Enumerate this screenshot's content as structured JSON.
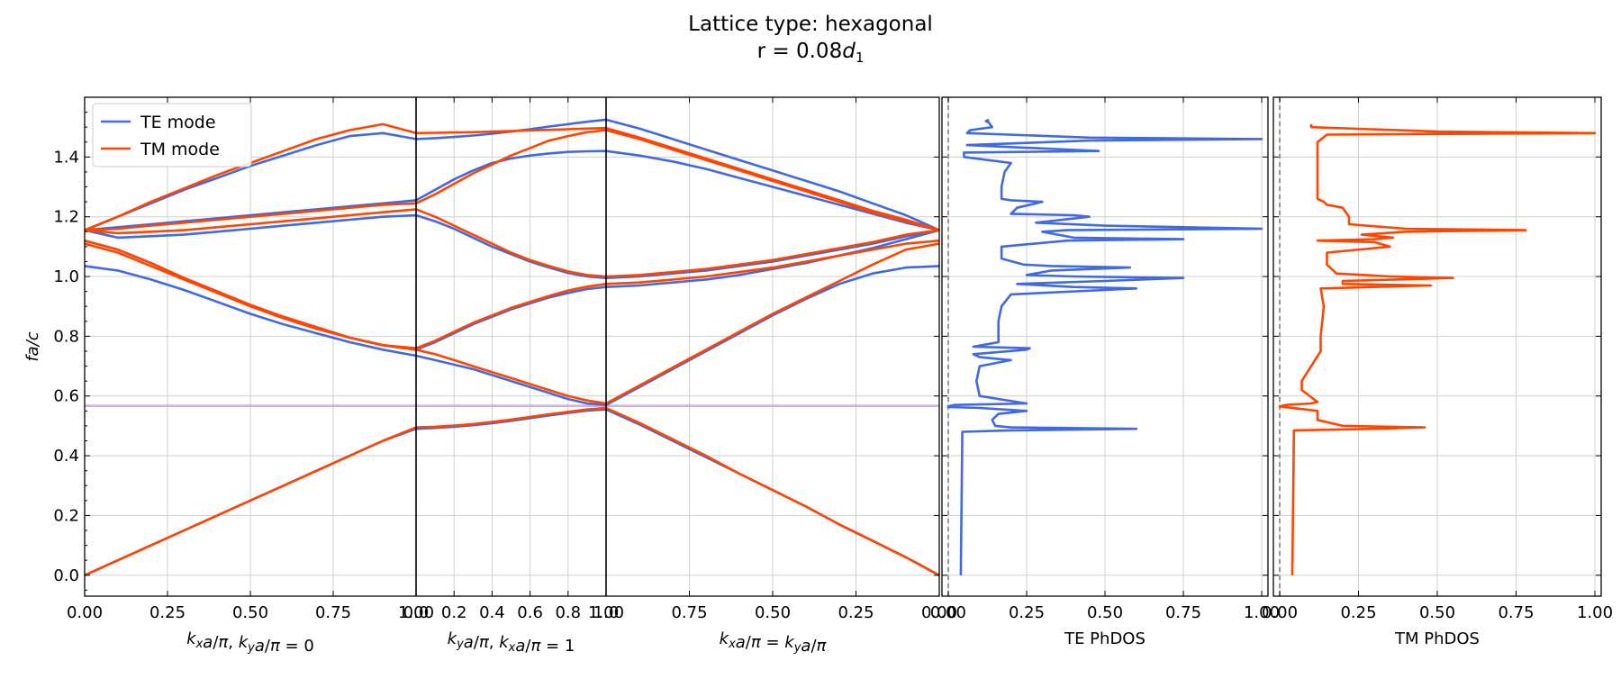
{
  "figure": {
    "title_line1": "Lattice type: hexagonal",
    "title_line2_prefix": "r = 0.08",
    "title_line2_var": "d",
    "title_line2_sub": "1"
  },
  "colors": {
    "te": "#4169e1",
    "tm": "#ff4500",
    "gap": "#c8a8e6",
    "grid": "#cfcfcf"
  },
  "chart_data": [
    {
      "type": "line",
      "name": "band-structure",
      "ylabel": "fa/c",
      "ylim": [
        -0.07,
        1.6
      ],
      "yticks": [
        0.0,
        0.2,
        0.4,
        0.6,
        0.8,
        1.0,
        1.2,
        1.4
      ],
      "ytick_labels": [
        "0.0",
        "0.2",
        "0.4",
        "0.6",
        "0.8",
        "1.0",
        "1.2",
        "1.4"
      ],
      "legend": {
        "placement": "top-left",
        "entries": [
          "TE mode",
          "TM mode"
        ]
      },
      "band_gap": [
        0.563,
        0.571
      ],
      "segments": [
        {
          "id": "seg1",
          "xlabel": "kxa/π, kya/π = 0",
          "xlim": [
            0,
            1
          ],
          "xticks": [
            0,
            0.25,
            0.5,
            0.75,
            1.0
          ],
          "xtick_labels": [
            "0.00",
            "0.25",
            "0.50",
            "0.75",
            "1.00"
          ],
          "x": [
            0,
            0.1,
            0.2,
            0.3,
            0.4,
            0.5,
            0.6,
            0.7,
            0.8,
            0.9,
            1.0
          ],
          "te": [
            [
              0.0,
              0.05,
              0.1,
              0.15,
              0.2,
              0.25,
              0.3,
              0.35,
              0.4,
              0.45,
              0.49
            ],
            [
              1.035,
              1.02,
              0.99,
              0.955,
              0.915,
              0.875,
              0.84,
              0.81,
              0.78,
              0.755,
              0.735
            ],
            [
              1.12,
              1.09,
              1.045,
              0.995,
              0.95,
              0.905,
              0.865,
              0.83,
              0.795,
              0.77,
              0.755
            ],
            [
              1.155,
              1.13,
              1.135,
              1.14,
              1.15,
              1.16,
              1.17,
              1.18,
              1.19,
              1.2,
              1.205
            ],
            [
              1.155,
              1.165,
              1.175,
              1.185,
              1.195,
              1.205,
              1.215,
              1.225,
              1.235,
              1.245,
              1.255
            ],
            [
              1.155,
              1.2,
              1.245,
              1.29,
              1.33,
              1.37,
              1.405,
              1.44,
              1.47,
              1.48,
              1.46
            ]
          ],
          "tm": [
            [
              0.0,
              0.05,
              0.1,
              0.15,
              0.2,
              0.25,
              0.3,
              0.35,
              0.4,
              0.45,
              0.495
            ],
            [
              1.12,
              1.09,
              1.045,
              0.995,
              0.95,
              0.905,
              0.865,
              0.83,
              0.795,
              0.77,
              0.755
            ],
            [
              1.11,
              1.08,
              1.035,
              0.99,
              0.945,
              0.9,
              0.86,
              0.825,
              0.795,
              0.77,
              0.76
            ],
            [
              1.155,
              1.145,
              1.15,
              1.155,
              1.165,
              1.175,
              1.185,
              1.195,
              1.205,
              1.215,
              1.225
            ],
            [
              1.155,
              1.16,
              1.17,
              1.18,
              1.19,
              1.2,
              1.21,
              1.22,
              1.23,
              1.24,
              1.245
            ],
            [
              1.155,
              1.2,
              1.25,
              1.295,
              1.34,
              1.38,
              1.42,
              1.46,
              1.49,
              1.51,
              1.48
            ]
          ]
        },
        {
          "id": "seg2",
          "xlabel": "kya/π, kxa/π = 1",
          "xlim": [
            0,
            1
          ],
          "xticks": [
            0,
            0.2,
            0.4,
            0.6,
            0.8,
            1.0
          ],
          "xtick_labels": [
            "0.0",
            "0.2",
            "0.4",
            "0.6",
            "0.8",
            "1.0"
          ],
          "x": [
            0,
            0.1,
            0.2,
            0.3,
            0.4,
            0.5,
            0.6,
            0.7,
            0.8,
            0.9,
            1.0
          ],
          "te": [
            [
              0.49,
              0.493,
              0.497,
              0.502,
              0.509,
              0.517,
              0.526,
              0.535,
              0.543,
              0.551,
              0.555
            ],
            [
              0.735,
              0.72,
              0.705,
              0.69,
              0.67,
              0.65,
              0.63,
              0.61,
              0.59,
              0.575,
              0.57
            ],
            [
              0.755,
              0.78,
              0.81,
              0.84,
              0.865,
              0.89,
              0.91,
              0.93,
              0.945,
              0.958,
              0.965
            ],
            [
              1.205,
              1.185,
              1.16,
              1.13,
              1.1,
              1.075,
              1.05,
              1.03,
              1.012,
              1.0,
              0.995
            ],
            [
              1.255,
              1.29,
              1.325,
              1.355,
              1.38,
              1.395,
              1.405,
              1.412,
              1.417,
              1.419,
              1.42
            ],
            [
              1.46,
              1.463,
              1.467,
              1.472,
              1.478,
              1.485,
              1.493,
              1.502,
              1.51,
              1.518,
              1.525
            ]
          ],
          "tm": [
            [
              0.495,
              0.497,
              0.501,
              0.506,
              0.513,
              0.521,
              0.53,
              0.539,
              0.547,
              0.555,
              0.56
            ],
            [
              0.755,
              0.74,
              0.72,
              0.7,
              0.68,
              0.66,
              0.64,
              0.62,
              0.6,
              0.585,
              0.575
            ],
            [
              0.76,
              0.785,
              0.815,
              0.845,
              0.87,
              0.895,
              0.915,
              0.935,
              0.953,
              0.966,
              0.975
            ],
            [
              1.225,
              1.2,
              1.17,
              1.14,
              1.11,
              1.08,
              1.055,
              1.035,
              1.017,
              1.005,
              1.0
            ],
            [
              1.245,
              1.275,
              1.31,
              1.345,
              1.375,
              1.405,
              1.43,
              1.455,
              1.47,
              1.483,
              1.49
            ],
            [
              1.48,
              1.481,
              1.482,
              1.483,
              1.485,
              1.487,
              1.489,
              1.491,
              1.493,
              1.495,
              1.497
            ]
          ]
        },
        {
          "id": "seg3",
          "xlabel": "kxa/π = kya/π",
          "xlim": [
            1,
            0
          ],
          "xticks": [
            1.0,
            0.75,
            0.5,
            0.25,
            0.0
          ],
          "xtick_labels": [
            "1.00",
            "0.75",
            "0.50",
            "0.25",
            "0.00"
          ],
          "x": [
            1.0,
            0.9,
            0.8,
            0.7,
            0.6,
            0.5,
            0.4,
            0.3,
            0.2,
            0.1,
            0.0
          ],
          "te": [
            [
              0.555,
              0.505,
              0.45,
              0.395,
              0.34,
              0.285,
              0.23,
              0.17,
              0.115,
              0.06,
              0.0
            ],
            [
              0.57,
              0.63,
              0.69,
              0.75,
              0.81,
              0.87,
              0.925,
              0.975,
              1.01,
              1.03,
              1.035
            ],
            [
              0.965,
              0.97,
              0.98,
              0.99,
              1.005,
              1.025,
              1.045,
              1.07,
              1.095,
              1.125,
              1.155
            ],
            [
              0.995,
              1.0,
              1.01,
              1.02,
              1.035,
              1.05,
              1.07,
              1.09,
              1.11,
              1.135,
              1.155
            ],
            [
              1.42,
              1.405,
              1.385,
              1.36,
              1.33,
              1.3,
              1.27,
              1.24,
              1.21,
              1.18,
              1.155
            ],
            [
              1.525,
              1.495,
              1.46,
              1.425,
              1.39,
              1.355,
              1.32,
              1.285,
              1.245,
              1.205,
              1.155
            ]
          ],
          "tm": [
            [
              0.56,
              0.51,
              0.455,
              0.4,
              0.34,
              0.285,
              0.23,
              0.17,
              0.115,
              0.06,
              0.0
            ],
            [
              0.575,
              0.635,
              0.695,
              0.755,
              0.815,
              0.875,
              0.93,
              0.985,
              1.04,
              1.09,
              1.11
            ],
            [
              0.975,
              0.98,
              0.99,
              1.0,
              1.015,
              1.03,
              1.05,
              1.07,
              1.09,
              1.11,
              1.12
            ],
            [
              1.0,
              1.005,
              1.015,
              1.025,
              1.04,
              1.055,
              1.075,
              1.095,
              1.115,
              1.14,
              1.155
            ],
            [
              1.49,
              1.46,
              1.425,
              1.39,
              1.355,
              1.32,
              1.285,
              1.25,
              1.215,
              1.185,
              1.155
            ],
            [
              1.497,
              1.465,
              1.43,
              1.395,
              1.36,
              1.325,
              1.29,
              1.255,
              1.22,
              1.19,
              1.155
            ]
          ]
        }
      ]
    },
    {
      "type": "line",
      "name": "te-phdos",
      "xlabel": "TE PhDOS",
      "xlim": [
        -0.02,
        1.02
      ],
      "xticks": [
        0,
        0.25,
        0.5,
        0.75,
        1.0
      ],
      "xtick_labels": [
        "0.00",
        "0.25",
        "0.50",
        "0.75",
        "1.00"
      ],
      "ylim": [
        -0.07,
        1.6
      ],
      "reference_x": 0.0,
      "y": [
        0.0,
        0.48,
        0.485,
        0.49,
        0.495,
        0.5,
        0.52,
        0.54,
        0.55,
        0.56,
        0.563,
        0.565,
        0.57,
        0.575,
        0.58,
        0.6,
        0.65,
        0.7,
        0.72,
        0.73,
        0.74,
        0.755,
        0.76,
        0.765,
        0.78,
        0.85,
        0.9,
        0.94,
        0.955,
        0.96,
        0.965,
        0.975,
        0.985,
        0.995,
        1.0,
        1.005,
        1.02,
        1.03,
        1.035,
        1.04,
        1.06,
        1.1,
        1.12,
        1.125,
        1.13,
        1.15,
        1.155,
        1.16,
        1.17,
        1.18,
        1.2,
        1.205,
        1.21,
        1.23,
        1.25,
        1.255,
        1.26,
        1.3,
        1.35,
        1.38,
        1.4,
        1.415,
        1.42,
        1.44,
        1.455,
        1.46,
        1.465,
        1.48,
        1.49,
        1.5,
        1.515,
        1.52,
        1.525
      ],
      "values": [
        0.04,
        0.045,
        0.2,
        0.6,
        0.2,
        0.15,
        0.14,
        0.16,
        0.25,
        0.1,
        0.0,
        0.0,
        0.02,
        0.25,
        0.22,
        0.1,
        0.09,
        0.1,
        0.2,
        0.1,
        0.08,
        0.25,
        0.26,
        0.08,
        0.16,
        0.16,
        0.17,
        0.2,
        0.5,
        0.6,
        0.4,
        0.22,
        0.5,
        0.75,
        0.4,
        0.25,
        0.33,
        0.58,
        0.33,
        0.24,
        0.17,
        0.17,
        0.38,
        0.75,
        0.4,
        0.3,
        0.38,
        1.0,
        0.5,
        0.28,
        0.45,
        0.4,
        0.2,
        0.22,
        0.3,
        0.2,
        0.17,
        0.17,
        0.18,
        0.2,
        0.05,
        0.05,
        0.48,
        0.06,
        0.45,
        1.0,
        0.45,
        0.06,
        0.07,
        0.14,
        0.13,
        0.12,
        0.13
      ]
    },
    {
      "type": "line",
      "name": "tm-phdos",
      "xlabel": "TM PhDOS",
      "xlim": [
        -0.02,
        1.02
      ],
      "xticks": [
        0,
        0.25,
        0.5,
        0.75,
        1.0
      ],
      "xtick_labels": [
        "0.00",
        "0.25",
        "0.50",
        "0.75",
        "1.00"
      ],
      "ylim": [
        -0.07,
        1.6
      ],
      "reference_x": 0.0,
      "y": [
        0.0,
        0.485,
        0.49,
        0.495,
        0.5,
        0.52,
        0.55,
        0.565,
        0.57,
        0.575,
        0.58,
        0.62,
        0.65,
        0.75,
        0.8,
        0.9,
        0.96,
        0.97,
        0.975,
        0.985,
        0.995,
        1.0,
        1.01,
        1.04,
        1.08,
        1.1,
        1.115,
        1.12,
        1.125,
        1.13,
        1.14,
        1.15,
        1.155,
        1.16,
        1.175,
        1.2,
        1.23,
        1.24,
        1.25,
        1.26,
        1.3,
        1.4,
        1.45,
        1.475,
        1.48,
        1.485,
        1.5,
        1.51
      ],
      "values": [
        0.04,
        0.045,
        0.3,
        0.46,
        0.2,
        0.12,
        0.12,
        0.0,
        0.02,
        0.1,
        0.12,
        0.07,
        0.07,
        0.13,
        0.13,
        0.14,
        0.13,
        0.48,
        0.2,
        0.2,
        0.55,
        0.35,
        0.18,
        0.15,
        0.15,
        0.35,
        0.3,
        0.12,
        0.3,
        0.36,
        0.26,
        0.4,
        0.78,
        0.4,
        0.22,
        0.22,
        0.2,
        0.15,
        0.14,
        0.12,
        0.12,
        0.12,
        0.12,
        0.15,
        1.0,
        0.5,
        0.1,
        0.1
      ]
    }
  ]
}
